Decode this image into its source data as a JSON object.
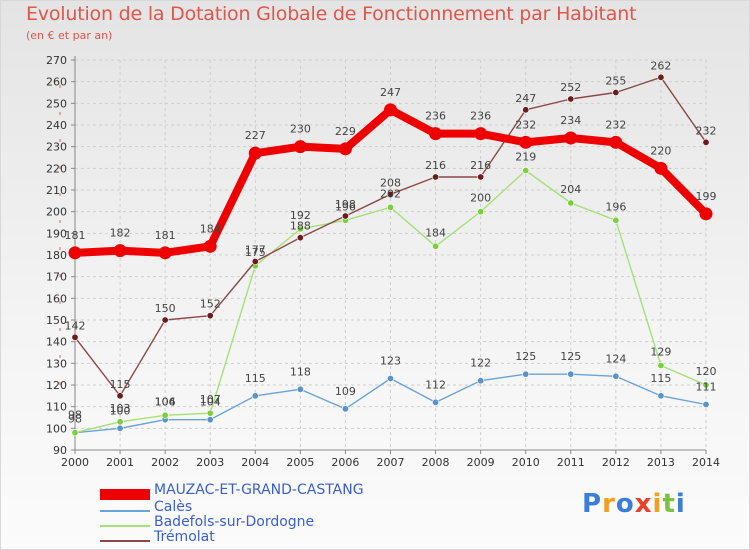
{
  "header": {
    "title": "Evolution de la Dotation Globale de Fonctionnement par Habitant",
    "subtitle": "(en € et par an)"
  },
  "logo": {
    "text": "Proxiti"
  },
  "chart_data": {
    "type": "line",
    "title": "Evolution de la Dotation Globale de Fonctionnement par Habitant",
    "subtitle": "(en € et par an)",
    "xlabel": "",
    "ylabel": "",
    "x": [
      2000,
      2001,
      2002,
      2003,
      2004,
      2005,
      2006,
      2007,
      2008,
      2009,
      2010,
      2011,
      2012,
      2013,
      2014
    ],
    "ylim": [
      90,
      270
    ],
    "yticks": [
      90,
      100,
      110,
      120,
      130,
      140,
      150,
      160,
      170,
      180,
      190,
      200,
      210,
      220,
      230,
      240,
      250,
      260,
      270
    ],
    "grid": true,
    "legend_position": "bottom-left",
    "series": [
      {
        "name": "MAUZAC-ET-GRAND-CASTANG",
        "color": "#ee0000",
        "marker_color": "#ee0000",
        "values": [
          181,
          182,
          181,
          184,
          227,
          230,
          229,
          247,
          236,
          236,
          232,
          234,
          232,
          220,
          199
        ]
      },
      {
        "name": "Calès",
        "color": "#6aa3d5",
        "marker_color": "#5b93c8",
        "values": [
          98,
          100,
          104,
          104,
          115,
          118,
          109,
          123,
          112,
          122,
          125,
          125,
          124,
          115,
          111
        ]
      },
      {
        "name": "Badefols-sur-Dordogne",
        "color": "#a6e07a",
        "marker_color": "#7ccf3a",
        "values": [
          98,
          103,
          106,
          107,
          175,
          192,
          196,
          202,
          184,
          200,
          219,
          204,
          196,
          129,
          120
        ]
      },
      {
        "name": "Trémolat",
        "color": "#8a4a4a",
        "marker_color": "#6b1c1c",
        "values": [
          142,
          115,
          150,
          152,
          177,
          188,
          198,
          208,
          216,
          216,
          247,
          252,
          255,
          262,
          232
        ]
      }
    ]
  }
}
